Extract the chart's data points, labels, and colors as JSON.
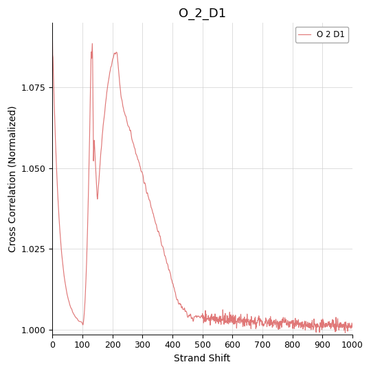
{
  "title": "O_2_D1",
  "xlabel": "Strand Shift",
  "ylabel": "Cross Correlation (Normalized)",
  "legend_label": "O 2 D1",
  "line_color": "#e07878",
  "xlim": [
    0,
    1000
  ],
  "ylim": [
    0.9985,
    1.095
  ],
  "yticks": [
    1.0,
    1.025,
    1.05,
    1.075
  ],
  "xticks": [
    0,
    100,
    200,
    300,
    400,
    500,
    600,
    700,
    800,
    900,
    1000
  ],
  "background_color": "#ffffff",
  "grid_color": "#d0d0d0",
  "title_fontsize": 13,
  "label_fontsize": 10,
  "tick_fontsize": 9
}
